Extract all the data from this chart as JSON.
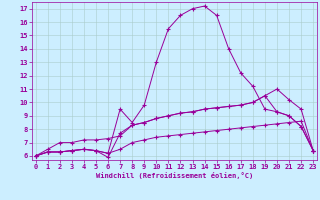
{
  "xlabel": "Windchill (Refroidissement éolien,°C)",
  "background_color": "#cceeff",
  "grid_color": "#aacccc",
  "line_color": "#990099",
  "x_ticks": [
    0,
    1,
    2,
    3,
    4,
    5,
    6,
    7,
    8,
    9,
    10,
    11,
    12,
    13,
    14,
    15,
    16,
    17,
    18,
    19,
    20,
    21,
    22,
    23
  ],
  "y_ticks": [
    6,
    7,
    8,
    9,
    10,
    11,
    12,
    13,
    14,
    15,
    16,
    17
  ],
  "ylim": [
    5.7,
    17.5
  ],
  "xlim": [
    -0.3,
    23.3
  ],
  "line1_x": [
    0,
    1,
    2,
    3,
    4,
    5,
    6,
    7,
    8,
    9,
    10,
    11,
    12,
    13,
    14,
    15,
    16,
    17,
    18,
    19,
    20,
    21,
    22,
    23
  ],
  "line1_y": [
    6.0,
    6.3,
    6.3,
    6.4,
    6.5,
    6.4,
    6.2,
    9.5,
    8.5,
    9.8,
    13.0,
    15.5,
    16.5,
    17.0,
    17.2,
    16.5,
    14.0,
    12.2,
    11.2,
    9.5,
    9.3,
    9.0,
    8.2,
    6.4
  ],
  "line2_x": [
    0,
    1,
    2,
    3,
    4,
    5,
    6,
    7,
    8,
    9,
    10,
    11,
    12,
    13,
    14,
    15,
    16,
    17,
    18,
    19,
    20,
    21,
    22,
    23
  ],
  "line2_y": [
    6.0,
    6.5,
    7.0,
    7.0,
    7.2,
    7.2,
    7.3,
    7.5,
    8.3,
    8.5,
    8.8,
    9.0,
    9.2,
    9.3,
    9.5,
    9.6,
    9.7,
    9.8,
    10.0,
    10.5,
    11.0,
    10.2,
    9.5,
    6.4
  ],
  "line3_x": [
    0,
    1,
    2,
    3,
    4,
    5,
    6,
    7,
    8,
    9,
    10,
    11,
    12,
    13,
    14,
    15,
    16,
    17,
    18,
    19,
    20,
    21,
    22,
    23
  ],
  "line3_y": [
    6.0,
    6.3,
    6.3,
    6.4,
    6.5,
    6.4,
    6.2,
    6.5,
    7.0,
    7.2,
    7.4,
    7.5,
    7.6,
    7.7,
    7.8,
    7.9,
    8.0,
    8.1,
    8.2,
    8.3,
    8.4,
    8.5,
    8.6,
    6.4
  ],
  "line4_x": [
    0,
    1,
    2,
    3,
    4,
    5,
    6,
    7,
    8,
    9,
    10,
    11,
    12,
    13,
    14,
    15,
    16,
    17,
    18,
    19,
    20,
    21,
    22,
    23
  ],
  "line4_y": [
    6.0,
    6.3,
    6.3,
    6.4,
    6.5,
    6.4,
    5.9,
    7.7,
    8.3,
    8.5,
    8.8,
    9.0,
    9.2,
    9.3,
    9.5,
    9.6,
    9.7,
    9.8,
    10.0,
    10.5,
    9.3,
    9.0,
    8.2,
    6.4
  ],
  "tick_fontsize": 5,
  "label_fontsize": 5
}
